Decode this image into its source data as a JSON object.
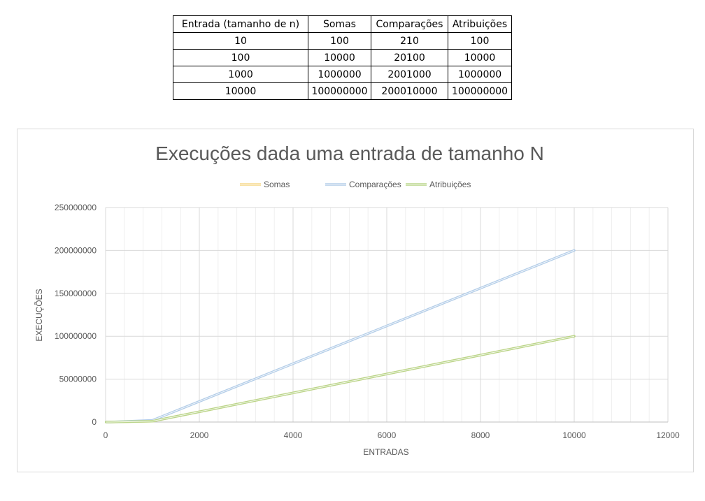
{
  "table": {
    "headers": [
      "Entrada (tamanho de n)",
      "Somas",
      "Comparações",
      "Atribuições"
    ],
    "rows": [
      [
        "10",
        "100",
        "210",
        "100"
      ],
      [
        "100",
        "10000",
        "20100",
        "10000"
      ],
      [
        "1000",
        "1000000",
        "2001000",
        "1000000"
      ],
      [
        "10000",
        "100000000",
        "200010000",
        "100000000"
      ]
    ]
  },
  "chart_data": {
    "type": "line",
    "title": "Execuções dada uma entrada de tamanho N",
    "xlabel": "ENTRADAS",
    "ylabel": "EXECUÇÕES",
    "xlim": [
      0,
      12000
    ],
    "ylim": [
      0,
      250000000
    ],
    "xticks": [
      0,
      2000,
      4000,
      6000,
      8000,
      10000,
      12000
    ],
    "yticks": [
      0,
      50000000,
      100000000,
      150000000,
      200000000,
      250000000
    ],
    "grid": true,
    "legend_position": "top",
    "x": [
      10,
      100,
      1000,
      10000
    ],
    "series": [
      {
        "name": "Somas",
        "values": [
          100,
          10000,
          1000000,
          100000000
        ],
        "color": "#f5d88a"
      },
      {
        "name": "Comparações",
        "values": [
          210,
          20100,
          2001000,
          200010000
        ],
        "color": "#b3cde8"
      },
      {
        "name": "Atribuições",
        "values": [
          100,
          10000,
          1000000,
          100000000
        ],
        "color": "#b9d58a"
      }
    ]
  }
}
